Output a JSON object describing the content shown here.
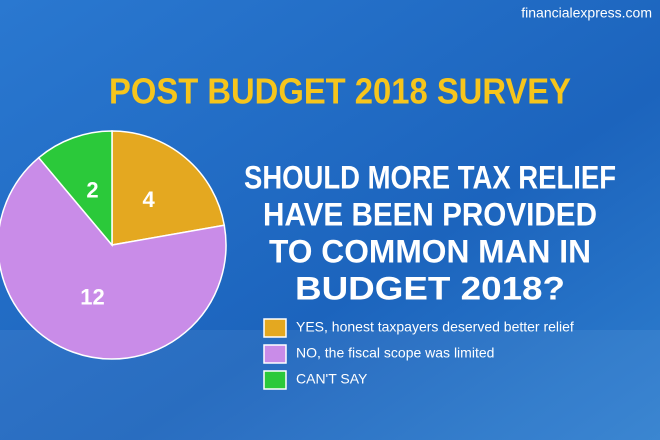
{
  "chart_data": {
    "type": "pie",
    "source": "financialexpress.com",
    "title": "POST BUDGET 2018 SURVEY",
    "subtitle_lines": [
      "SHOULD MORE TAX RELIEF",
      "HAVE BEEN PROVIDED",
      "TO COMMON MAN IN",
      "BUDGET 2018?"
    ],
    "categories": [
      "YES, honest taxpayers deserved better relief",
      "NO, the fiscal scope was limited",
      "CAN'T SAY"
    ],
    "values": [
      4,
      12,
      2
    ],
    "colors": [
      "#e4a820",
      "#c98ce8",
      "#2bc93a"
    ]
  }
}
